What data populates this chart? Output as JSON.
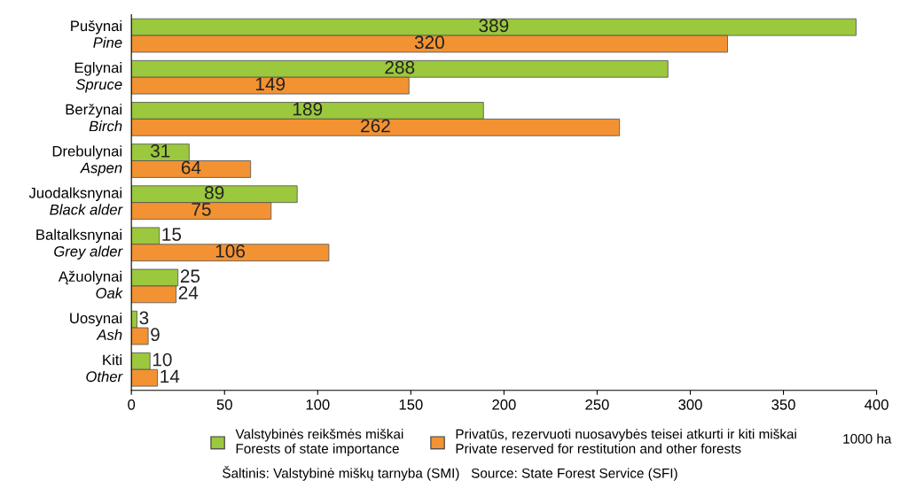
{
  "chart_data": {
    "type": "bar",
    "orientation": "horizontal",
    "categories": [
      "Pušynai\nPine",
      "Eglynai\nSpruce",
      "Beržynai\nBirch",
      "Drebulynai\nAspen",
      "Juodalksnynai\nBlack alder",
      "Baltalksnynai\nGrey alder",
      "Ąžuolynai\nOak",
      "Uosynai\nAsh",
      "Kiti\nOther"
    ],
    "series": [
      {
        "name": "Valstybinės reikšmės miškai\nForests of state importance",
        "color": "#9bc83c",
        "values": [
          389,
          288,
          189,
          31,
          89,
          15,
          25,
          3,
          10
        ]
      },
      {
        "name": "Privatūs, rezervuoti nuosavybės teisei atkurti ir kiti miškai\nPrivate reserved for restitution and other forests",
        "color": "#f39232",
        "values": [
          320,
          149,
          262,
          64,
          75,
          106,
          24,
          9,
          14
        ]
      }
    ],
    "xlim": [
      0,
      400
    ],
    "xticks": [
      0,
      50,
      100,
      150,
      200,
      250,
      300,
      350,
      400
    ],
    "xlabel": "1000 ha",
    "data_labels": true,
    "legend": "bottom",
    "grid": false,
    "annotations": [
      "Šaltinis: Valstybinė miškų tarnyba (SMI)   Source: State Forest Service (SFI)"
    ]
  }
}
